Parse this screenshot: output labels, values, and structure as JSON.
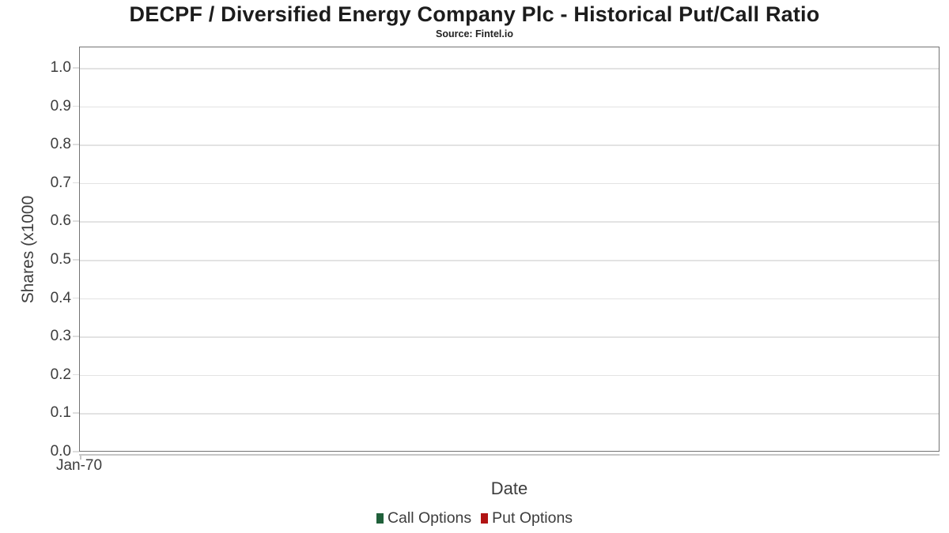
{
  "header": {
    "title": "DECPF / Diversified Energy Company Plc - Historical Put/Call Ratio",
    "subtitle": "Source: Fintel.io"
  },
  "chart_data": {
    "type": "line",
    "title": "DECPF / Diversified Energy Company Plc - Historical Put/Call Ratio",
    "subtitle": "Source: Fintel.io",
    "xlabel": "Date",
    "ylabel": "Shares (x1000",
    "ylim": [
      0.0,
      1.0
    ],
    "grid": "horizontal",
    "legend_position": "bottom",
    "yticks": [
      {
        "label": "0.0",
        "value": 0.0
      },
      {
        "label": "0.1",
        "value": 0.1
      },
      {
        "label": "0.2",
        "value": 0.2
      },
      {
        "label": "0.3",
        "value": 0.3
      },
      {
        "label": "0.4",
        "value": 0.4
      },
      {
        "label": "0.5",
        "value": 0.5
      },
      {
        "label": "0.6",
        "value": 0.6
      },
      {
        "label": "0.7",
        "value": 0.7
      },
      {
        "label": "0.8",
        "value": 0.8
      },
      {
        "label": "0.9",
        "value": 0.9
      },
      {
        "label": "1.0",
        "value": 1.0
      }
    ],
    "xticks": [
      {
        "label": "Jan-70",
        "position": 0.0
      }
    ],
    "series": [
      {
        "name": "Call Options",
        "color": "#20603a",
        "x": [],
        "values": []
      },
      {
        "name": "Put Options",
        "color": "#b11414",
        "x": [],
        "values": []
      }
    ]
  },
  "colors": {
    "plot_border": "#737373",
    "gridline": "#e3e3e3",
    "axis_line": "#c6c6c6",
    "text": "#3d3d3d",
    "title_text": "#1c1c1c"
  }
}
